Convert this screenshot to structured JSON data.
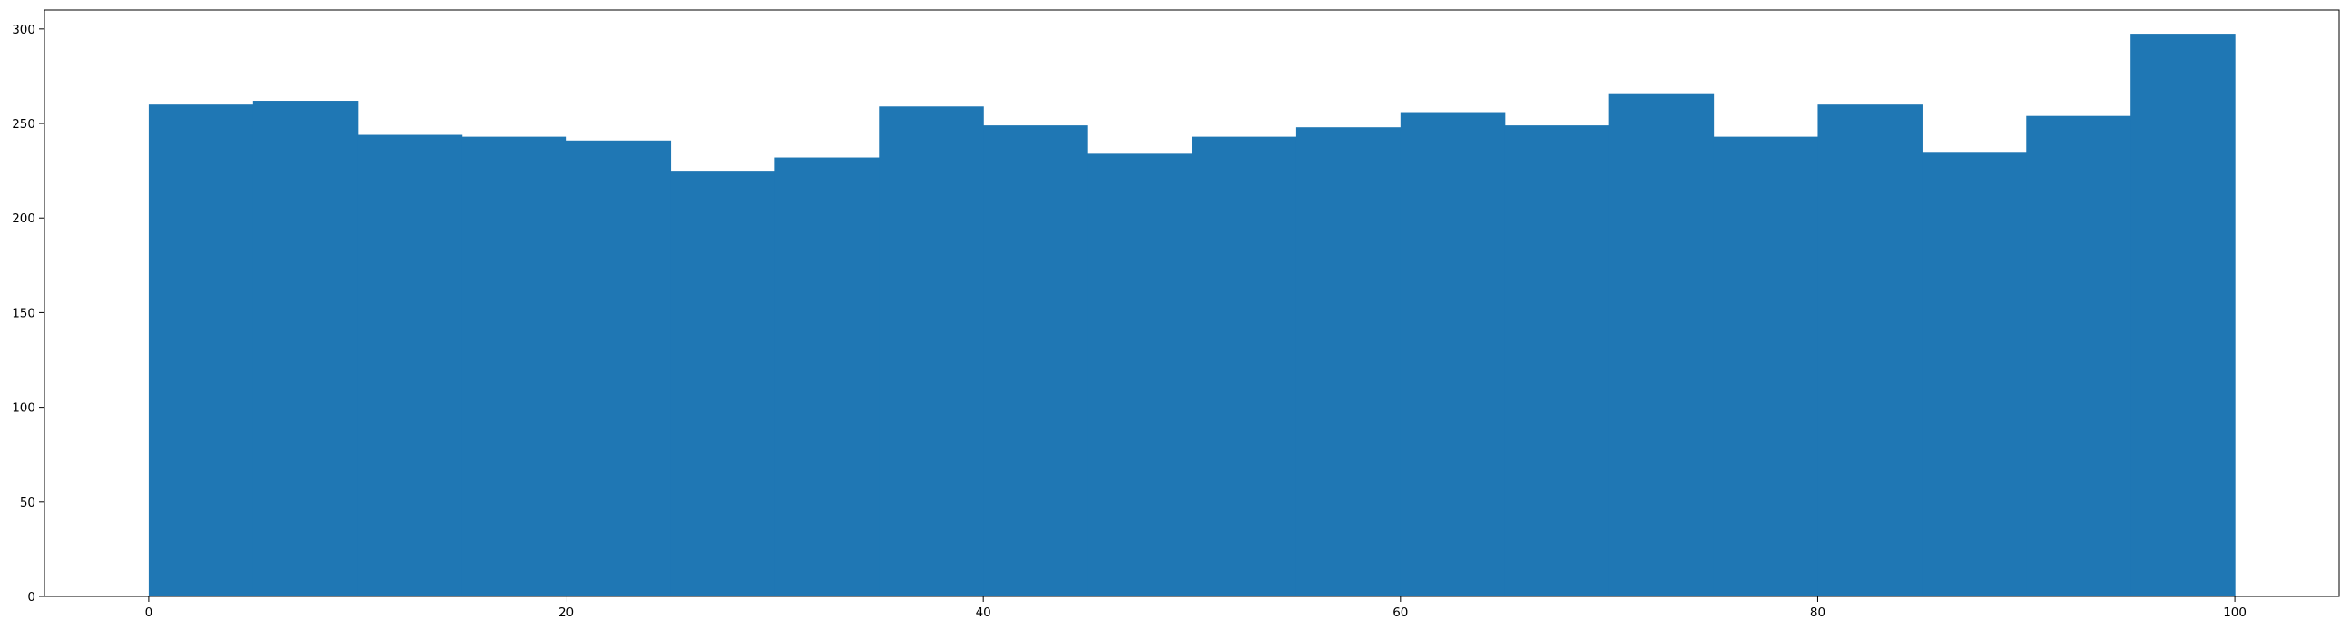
{
  "chart_data": {
    "type": "bar",
    "subtype": "histogram",
    "title": "",
    "xlabel": "",
    "ylabel": "",
    "bin_edges": [
      0,
      5,
      10,
      15,
      20,
      25,
      30,
      35,
      40,
      45,
      50,
      55,
      60,
      65,
      70,
      75,
      80,
      85,
      90,
      95,
      100
    ],
    "values": [
      260,
      262,
      244,
      243,
      241,
      225,
      232,
      259,
      249,
      234,
      243,
      248,
      256,
      249,
      266,
      243,
      260,
      235,
      254,
      297
    ],
    "xlim": [
      -5,
      105
    ],
    "ylim": [
      0,
      310
    ],
    "x_ticks": [
      0,
      20,
      40,
      60,
      80,
      100
    ],
    "x_tick_labels": [
      "0",
      "20",
      "40",
      "60",
      "80",
      "100"
    ],
    "y_ticks": [
      0,
      50,
      100,
      150,
      200,
      250,
      300
    ],
    "y_tick_labels": [
      "0",
      "50",
      "100",
      "150",
      "200",
      "250",
      "300"
    ],
    "grid": false,
    "legend": "none",
    "colors": {
      "bar": "#1f77b4",
      "axes": "#000000",
      "background": "#ffffff"
    }
  }
}
